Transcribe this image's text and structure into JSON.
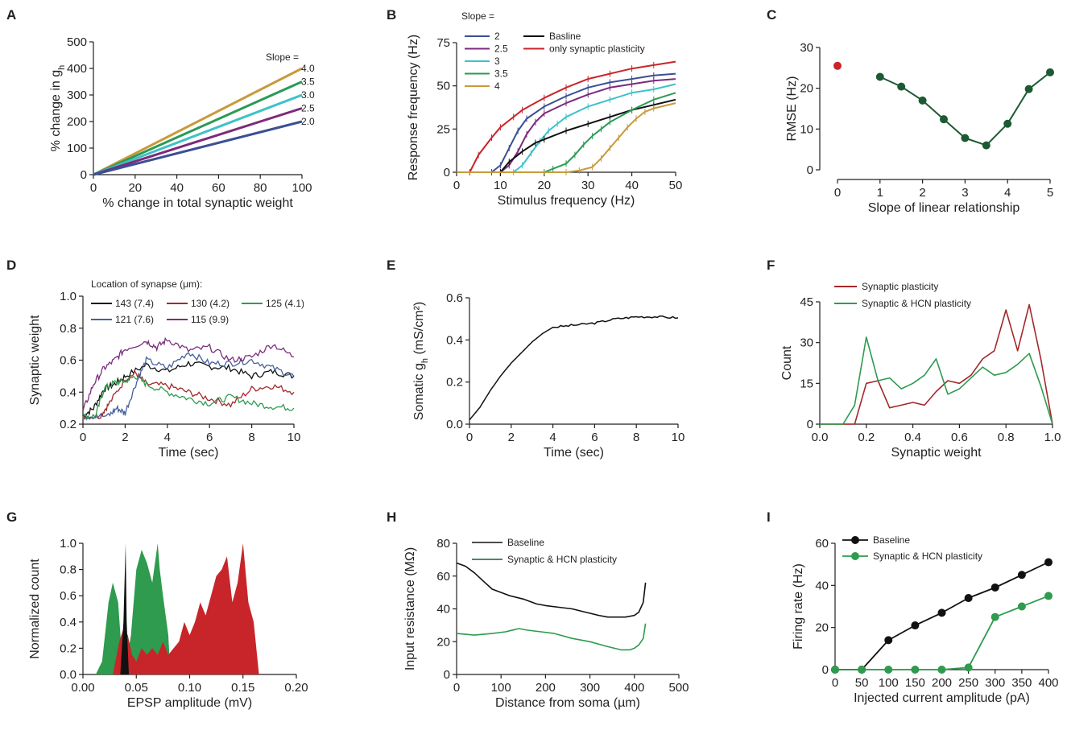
{
  "colors": {
    "s2": "#3b4f94",
    "s25": "#7d2a7a",
    "s3": "#3ec1c9",
    "s35": "#2a9a55",
    "s4": "#c89a3a",
    "red": "#c8252a",
    "black": "#111111",
    "darkgreen": "#1c5a34",
    "green": "#2e9b4e",
    "darkred": "#a3282c",
    "blue": "#45609e",
    "purple": "#7b2d7f"
  },
  "chart_data": [
    {
      "panel": "A",
      "type": "line",
      "xlabel": "% change in total synaptic weight",
      "ylabel_main": "% change in g",
      "ylabel_sub": "h",
      "xlim": [
        0,
        100
      ],
      "ylim": [
        0,
        500
      ],
      "xticks": [
        "0",
        "20",
        "40",
        "60",
        "80",
        "100"
      ],
      "yticks": [
        "0",
        "100",
        "200",
        "300",
        "400",
        "500"
      ],
      "legend_title": "Slope =",
      "series": [
        {
          "name": "4.0",
          "color_key": "s4",
          "x": [
            0,
            100
          ],
          "y": [
            0,
            400
          ]
        },
        {
          "name": "3.5",
          "color_key": "s35",
          "x": [
            0,
            100
          ],
          "y": [
            0,
            350
          ]
        },
        {
          "name": "3.0",
          "color_key": "s3",
          "x": [
            0,
            100
          ],
          "y": [
            0,
            300
          ]
        },
        {
          "name": "2.5",
          "color_key": "s25",
          "x": [
            0,
            100
          ],
          "y": [
            0,
            250
          ]
        },
        {
          "name": "2.0",
          "color_key": "s2",
          "x": [
            0,
            100
          ],
          "y": [
            0,
            200
          ]
        }
      ]
    },
    {
      "panel": "B",
      "type": "line",
      "xlabel": "Stimulus frequency (Hz)",
      "ylabel": "Response frequency (Hz)",
      "xlim": [
        0,
        50
      ],
      "ylim": [
        0,
        75
      ],
      "xticks": [
        "0",
        "10",
        "20",
        "30",
        "40",
        "50"
      ],
      "yticks": [
        "0",
        "25",
        "50",
        "75"
      ],
      "legend_title": "Slope =",
      "legend_left": [
        "2",
        "2.5",
        "3",
        "3.5",
        "4"
      ],
      "legend_right": [
        "Basline",
        "only synaptic plasticity"
      ],
      "series": [
        {
          "name": "only synaptic plasticity",
          "color_key": "red",
          "x": [
            0,
            3,
            5,
            8,
            10,
            13,
            15,
            20,
            25,
            30,
            35,
            40,
            45,
            50
          ],
          "y": [
            0,
            0,
            10,
            20,
            26,
            32,
            36,
            43,
            49,
            54,
            57,
            60,
            62,
            64
          ]
        },
        {
          "name": "2",
          "color_key": "s2",
          "x": [
            0,
            8,
            10,
            12,
            14,
            16,
            20,
            25,
            30,
            35,
            40,
            45,
            50
          ],
          "y": [
            0,
            0,
            4,
            14,
            24,
            31,
            38,
            44,
            49,
            52,
            54,
            56,
            57
          ]
        },
        {
          "name": "2.5",
          "color_key": "s25",
          "x": [
            0,
            10,
            12,
            14,
            16,
            18,
            20,
            25,
            30,
            35,
            40,
            45,
            50
          ],
          "y": [
            0,
            0,
            4,
            12,
            22,
            29,
            34,
            40,
            45,
            49,
            51,
            53,
            54
          ]
        },
        {
          "name": "3",
          "color_key": "s3",
          "x": [
            0,
            13,
            15,
            17,
            19,
            21,
            23,
            25,
            30,
            35,
            40,
            45,
            50
          ],
          "y": [
            0,
            0,
            4,
            11,
            18,
            24,
            28,
            32,
            38,
            42,
            46,
            48,
            51
          ]
        },
        {
          "name": "Basline",
          "color_key": "black",
          "x": [
            0,
            10,
            12,
            15,
            18,
            20,
            25,
            30,
            35,
            40,
            45,
            50
          ],
          "y": [
            0,
            0,
            6,
            12,
            17,
            19,
            24,
            28,
            32,
            36,
            39,
            42
          ]
        },
        {
          "name": "3.5",
          "color_key": "s35",
          "x": [
            0,
            20,
            22,
            25,
            27,
            29,
            31,
            33,
            35,
            40,
            45,
            50
          ],
          "y": [
            0,
            0,
            2,
            5,
            10,
            16,
            21,
            25,
            29,
            36,
            42,
            46
          ]
        },
        {
          "name": "4",
          "color_key": "s4",
          "x": [
            0,
            25,
            28,
            31,
            33,
            35,
            37,
            39,
            41,
            43,
            45,
            50
          ],
          "y": [
            0,
            0,
            1,
            3,
            8,
            14,
            20,
            26,
            31,
            35,
            37,
            40
          ]
        }
      ]
    },
    {
      "panel": "C",
      "type": "scatter",
      "xlabel": "Slope of linear relationship",
      "ylabel": "RMSE (Hz)",
      "xlim": [
        0,
        5
      ],
      "ylim": [
        0,
        30
      ],
      "xticks": [
        "0",
        "1",
        "2",
        "3",
        "4",
        "5"
      ],
      "yticks": [
        "0",
        "10",
        "20",
        "30"
      ],
      "outlier": {
        "x": 0,
        "y": 25.5,
        "color_key": "red"
      },
      "series": [
        {
          "name": "RMSE",
          "color_key": "darkgreen",
          "x": [
            1,
            1.5,
            2,
            2.5,
            3,
            3.5,
            4,
            4.5,
            5
          ],
          "y": [
            22.8,
            20.4,
            17,
            12.4,
            7.8,
            6,
            11.3,
            19.8,
            23.9
          ]
        }
      ]
    },
    {
      "panel": "D",
      "type": "line",
      "xlabel": "Time (sec)",
      "ylabel": "Synaptic weight",
      "xlim": [
        0,
        10
      ],
      "ylim": [
        0.2,
        1.0
      ],
      "xticks": [
        "0",
        "2",
        "4",
        "6",
        "8",
        "10"
      ],
      "yticks": [
        "0.2",
        "0.4",
        "0.6",
        "0.8",
        "1.0"
      ],
      "legend_title": "Location of synapse (μm):",
      "series": [
        {
          "name": "143 (7.4)",
          "color_key": "black",
          "x": [
            0,
            0.5,
            1,
            1.5,
            2,
            3,
            4,
            5,
            6,
            7,
            8,
            9,
            10
          ],
          "y": [
            0.25,
            0.3,
            0.42,
            0.45,
            0.5,
            0.57,
            0.53,
            0.58,
            0.56,
            0.55,
            0.5,
            0.53,
            0.5
          ]
        },
        {
          "name": "130 (4.2)",
          "color_key": "darkred",
          "x": [
            0,
            0.8,
            1.2,
            2,
            2.5,
            3,
            4,
            5,
            6,
            7,
            8,
            9,
            10
          ],
          "y": [
            0.25,
            0.25,
            0.32,
            0.48,
            0.52,
            0.45,
            0.44,
            0.4,
            0.36,
            0.32,
            0.42,
            0.44,
            0.4
          ]
        },
        {
          "name": "125 (4.1)",
          "color_key": "green",
          "x": [
            0,
            0.6,
            1,
            1.5,
            2,
            2.5,
            3,
            4,
            5,
            6,
            7,
            8,
            9,
            10
          ],
          "y": [
            0.25,
            0.25,
            0.42,
            0.46,
            0.47,
            0.5,
            0.45,
            0.4,
            0.36,
            0.33,
            0.37,
            0.33,
            0.31,
            0.3
          ]
        },
        {
          "name": "121 (7.6)",
          "color_key": "blue",
          "x": [
            0,
            1.2,
            1.6,
            2,
            2.5,
            3,
            4,
            5,
            6,
            7,
            8,
            9,
            10
          ],
          "y": [
            0.25,
            0.25,
            0.3,
            0.27,
            0.45,
            0.6,
            0.55,
            0.65,
            0.58,
            0.58,
            0.6,
            0.55,
            0.5
          ]
        },
        {
          "name": "115 (9.9)",
          "color_key": "purple",
          "x": [
            0,
            0.5,
            1,
            1.5,
            2,
            3,
            3.5,
            4,
            5,
            6,
            7,
            8,
            9,
            10
          ],
          "y": [
            0.28,
            0.45,
            0.55,
            0.6,
            0.67,
            0.72,
            0.68,
            0.73,
            0.66,
            0.68,
            0.6,
            0.62,
            0.7,
            0.62
          ]
        }
      ]
    },
    {
      "panel": "E",
      "type": "line",
      "xlabel": "Time (sec)",
      "ylabel_main": "Somatic g",
      "ylabel_sub": "h",
      "ylabel_units": " (mS/cm²)",
      "xlim": [
        0,
        10
      ],
      "ylim": [
        0,
        0.6
      ],
      "xticks": [
        "0",
        "2",
        "4",
        "6",
        "8",
        "10"
      ],
      "yticks": [
        "0.0",
        "0.2",
        "0.4",
        "0.6"
      ],
      "series": [
        {
          "name": "Somatic gh",
          "color_key": "black",
          "x": [
            0,
            0.5,
            1,
            1.5,
            2,
            2.5,
            3,
            3.5,
            4,
            5,
            6,
            7,
            8,
            9,
            10
          ],
          "y": [
            0.02,
            0.08,
            0.16,
            0.23,
            0.29,
            0.34,
            0.39,
            0.43,
            0.46,
            0.47,
            0.48,
            0.5,
            0.51,
            0.51,
            0.505
          ]
        }
      ]
    },
    {
      "panel": "F",
      "type": "line",
      "xlabel": "Synaptic weight",
      "ylabel": "Count",
      "xlim": [
        0,
        1
      ],
      "ylim": [
        0,
        45
      ],
      "xticks": [
        "0.0",
        "0.2",
        "0.4",
        "0.6",
        "0.8",
        "1.0"
      ],
      "yticks": [
        "0",
        "15",
        "30",
        "45"
      ],
      "series": [
        {
          "name": "Synaptic plasticity",
          "color_key": "darkred",
          "x": [
            0,
            0.1,
            0.15,
            0.2,
            0.25,
            0.3,
            0.35,
            0.4,
            0.45,
            0.5,
            0.55,
            0.6,
            0.65,
            0.7,
            0.75,
            0.8,
            0.85,
            0.9,
            0.95,
            1.0
          ],
          "y": [
            0,
            0,
            0,
            15,
            16,
            6,
            7,
            8,
            7,
            12,
            16,
            15,
            18,
            24,
            27,
            42,
            27,
            44,
            24,
            0
          ]
        },
        {
          "name": "Synaptic & HCN plasticity",
          "color_key": "green",
          "x": [
            0,
            0.1,
            0.15,
            0.2,
            0.25,
            0.3,
            0.35,
            0.4,
            0.45,
            0.5,
            0.55,
            0.6,
            0.65,
            0.7,
            0.75,
            0.8,
            0.85,
            0.9,
            0.95,
            1.0
          ],
          "y": [
            0,
            0,
            7,
            32,
            16,
            17,
            13,
            15,
            18,
            24,
            11,
            13,
            17,
            21,
            18,
            19,
            22,
            26,
            14,
            0
          ]
        }
      ]
    },
    {
      "panel": "G",
      "type": "area",
      "xlabel": "EPSP amplitude (mV)",
      "ylabel": "Normalized count",
      "xlim": [
        0,
        0.2
      ],
      "ylim": [
        0,
        1.0
      ],
      "xticks": [
        "0.00",
        "0.05",
        "0.10",
        "0.15",
        "0.20"
      ],
      "yticks": [
        "0.0",
        "0.2",
        "0.4",
        "0.6",
        "0.8",
        "1.0"
      ],
      "series": [
        {
          "name": "green",
          "color_key": "green",
          "x": [
            0.012,
            0.018,
            0.024,
            0.028,
            0.033,
            0.036,
            0.04,
            0.045,
            0.05,
            0.055,
            0.06,
            0.065,
            0.07,
            0.072,
            0.075,
            0.08,
            0.082
          ],
          "y": [
            0,
            0.1,
            0.55,
            0.7,
            0.55,
            0.2,
            0.05,
            0.3,
            0.8,
            0.95,
            0.85,
            0.7,
            1.0,
            0.8,
            0.6,
            0.3,
            0
          ]
        },
        {
          "name": "red",
          "color_key": "red",
          "x": [
            0.028,
            0.034,
            0.038,
            0.042,
            0.046,
            0.05,
            0.055,
            0.06,
            0.065,
            0.07,
            0.075,
            0.08,
            0.085,
            0.09,
            0.095,
            0.1,
            0.105,
            0.11,
            0.115,
            0.12,
            0.125,
            0.13,
            0.135,
            0.14,
            0.145,
            0.15,
            0.155,
            0.16,
            0.165
          ],
          "y": [
            0,
            0.25,
            0.35,
            0.3,
            0.15,
            0.1,
            0.2,
            0.15,
            0.2,
            0.15,
            0.25,
            0.15,
            0.2,
            0.25,
            0.4,
            0.3,
            0.4,
            0.55,
            0.45,
            0.6,
            0.75,
            0.8,
            0.9,
            0.55,
            0.7,
            1.0,
            0.55,
            0.4,
            0
          ]
        },
        {
          "name": "black",
          "color_key": "black",
          "x": [
            0.035,
            0.038,
            0.04,
            0.041,
            0.043
          ],
          "y": [
            0,
            0.4,
            1.0,
            0.4,
            0
          ]
        }
      ]
    },
    {
      "panel": "H",
      "type": "line",
      "xlabel": "Distance from soma (µm)",
      "ylabel": "Input resistance (MΩ)",
      "xlim": [
        0,
        500
      ],
      "ylim": [
        0,
        80
      ],
      "xticks": [
        "0",
        "100",
        "200",
        "300",
        "400",
        "500"
      ],
      "yticks": [
        "0",
        "20",
        "40",
        "60",
        "80"
      ],
      "series": [
        {
          "name": "Baseline",
          "color_key": "black",
          "x": [
            0,
            20,
            40,
            60,
            80,
            100,
            120,
            150,
            180,
            200,
            230,
            260,
            290,
            320,
            340,
            360,
            380,
            400,
            410,
            420,
            425
          ],
          "y": [
            68,
            66,
            62,
            57,
            52,
            50,
            48,
            46,
            43,
            42,
            41,
            40,
            38,
            36,
            35,
            35,
            35,
            36,
            38,
            44,
            56
          ]
        },
        {
          "name": "Synaptic & HCN plasticity",
          "color_key": "green",
          "x": [
            0,
            40,
            80,
            110,
            140,
            160,
            190,
            220,
            260,
            300,
            340,
            370,
            390,
            400,
            410,
            420,
            425
          ],
          "y": [
            25,
            24,
            25,
            26,
            28,
            27,
            26,
            25,
            22,
            20,
            17,
            15,
            15,
            16,
            18,
            22,
            31
          ]
        }
      ]
    },
    {
      "panel": "I",
      "type": "line",
      "xlabel": "Injected current amplitude (pA)",
      "ylabel": "Firing rate (Hz)",
      "xlim": [
        0,
        400
      ],
      "ylim": [
        0,
        60
      ],
      "xticks": [
        "0",
        "50",
        "100",
        "150",
        "200",
        "250",
        "300",
        "350",
        "400"
      ],
      "yticks": [
        "0",
        "20",
        "40",
        "60"
      ],
      "series": [
        {
          "name": "Baseline",
          "color_key": "black",
          "x": [
            0,
            50,
            100,
            150,
            200,
            250,
            300,
            350,
            400
          ],
          "y": [
            0,
            0,
            14,
            21,
            27,
            34,
            39,
            45,
            51
          ]
        },
        {
          "name": "Synaptic & HCN plasticity",
          "color_key": "green",
          "x": [
            0,
            50,
            100,
            150,
            200,
            250,
            300,
            350,
            400
          ],
          "y": [
            0,
            0,
            0,
            0,
            0,
            1,
            25,
            30,
            35
          ]
        }
      ]
    }
  ]
}
